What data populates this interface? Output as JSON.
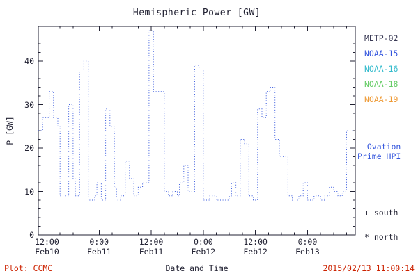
{
  "title": "Hemispheric Power [GW]",
  "axes": {
    "xlabel": "Date and Time",
    "ylabel": "P [GW]"
  },
  "legend": [
    {
      "label": "METP-02",
      "color": "#3a3a55"
    },
    {
      "label": "NOAA-15",
      "color": "#3355dd"
    },
    {
      "label": "NOAA-16",
      "color": "#33bbcc"
    },
    {
      "label": "NOAA-18",
      "color": "#66cc66"
    },
    {
      "label": "NOAA-19",
      "color": "#ee9933"
    }
  ],
  "annotations": {
    "ovation_line1": "— Ovation",
    "ovation_line2": "Prime HPI",
    "ovation_color": "#3355dd",
    "south_marker": "+ south",
    "north_marker": "* north",
    "marker_color": "#222233"
  },
  "footer": {
    "plot_credit": "Plot: CCMC",
    "timestamp": "2015/02/13 11:00:14",
    "color": "#cc2200"
  },
  "chart_data": {
    "type": "line",
    "style": "step-dotted",
    "title": "Hemispheric Power [GW]",
    "xlabel": "Date and Time",
    "ylabel": "P [GW]",
    "x_units": "hours since 2015-02-10 00:00",
    "xlim": [
      10,
      83
    ],
    "ylim": [
      0,
      48
    ],
    "yticks": [
      0,
      10,
      20,
      30,
      40
    ],
    "y_minor_step": 2,
    "x_minor_step": 3,
    "grid": false,
    "legend_position": "right-outside",
    "line_color": "#3355dd",
    "frame_color": "#222233",
    "xticks": [
      {
        "pos": 12,
        "time": "12:00",
        "date": "Feb10"
      },
      {
        "pos": 24,
        "time": "0:00",
        "date": "Feb11"
      },
      {
        "pos": 36,
        "time": "12:00",
        "date": "Feb11"
      },
      {
        "pos": 48,
        "time": "0:00",
        "date": "Feb12"
      },
      {
        "pos": 60,
        "time": "12:00",
        "date": "Feb12"
      },
      {
        "pos": 72,
        "time": "0:00",
        "date": "Feb13"
      }
    ],
    "series": [
      {
        "name": "Ovation Prime HPI",
        "points": [
          [
            10,
            24
          ],
          [
            11,
            27
          ],
          [
            12.5,
            33
          ],
          [
            13.5,
            27
          ],
          [
            14.5,
            25
          ],
          [
            15,
            9
          ],
          [
            16.5,
            9
          ],
          [
            17,
            30
          ],
          [
            18,
            13
          ],
          [
            18.5,
            9
          ],
          [
            19.5,
            38
          ],
          [
            20.5,
            40
          ],
          [
            21.5,
            8
          ],
          [
            23,
            9
          ],
          [
            23.5,
            12
          ],
          [
            24.5,
            8
          ],
          [
            25.5,
            29
          ],
          [
            26.5,
            25
          ],
          [
            27.5,
            11
          ],
          [
            28,
            8
          ],
          [
            29,
            9
          ],
          [
            30,
            17
          ],
          [
            31,
            13
          ],
          [
            32,
            9
          ],
          [
            33,
            11
          ],
          [
            34,
            12
          ],
          [
            35.5,
            47
          ],
          [
            36.5,
            33
          ],
          [
            38,
            33
          ],
          [
            39,
            10
          ],
          [
            40,
            9
          ],
          [
            41,
            10
          ],
          [
            42,
            9
          ],
          [
            42.5,
            12
          ],
          [
            43.5,
            16
          ],
          [
            44.5,
            10
          ],
          [
            46,
            39
          ],
          [
            47,
            38
          ],
          [
            48,
            8
          ],
          [
            49.5,
            9
          ],
          [
            51,
            8
          ],
          [
            53,
            8
          ],
          [
            54,
            9
          ],
          [
            54.5,
            12
          ],
          [
            55.5,
            9
          ],
          [
            56.5,
            22
          ],
          [
            57.5,
            21
          ],
          [
            58.5,
            9
          ],
          [
            59.5,
            8
          ],
          [
            60.5,
            29
          ],
          [
            61.5,
            27
          ],
          [
            62.5,
            33
          ],
          [
            63.5,
            34
          ],
          [
            64.5,
            22
          ],
          [
            65.5,
            18
          ],
          [
            66.5,
            18
          ],
          [
            67.5,
            9
          ],
          [
            68.5,
            8
          ],
          [
            70,
            9
          ],
          [
            71,
            12
          ],
          [
            72,
            8
          ],
          [
            73.5,
            9
          ],
          [
            75,
            8
          ],
          [
            76,
            9
          ],
          [
            77,
            11
          ],
          [
            78,
            10
          ],
          [
            79,
            9
          ],
          [
            80,
            10
          ],
          [
            81,
            24
          ],
          [
            83,
            24
          ]
        ]
      }
    ]
  }
}
